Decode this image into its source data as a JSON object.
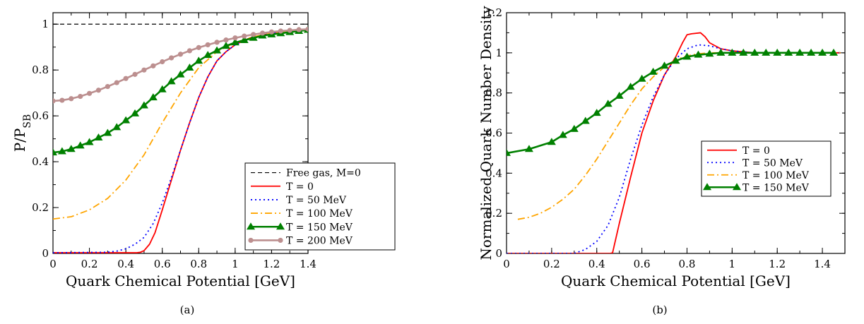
{
  "chart_data": [
    {
      "type": "line",
      "caption": "(a)",
      "xlabel": "Quark Chemical Potential [GeV]",
      "ylabel": "P/P",
      "ylabel_sub": "SB",
      "xlim": [
        0,
        1.4
      ],
      "ylim": [
        0,
        1.05
      ],
      "xticks": [
        "0",
        "0.2",
        "0.4",
        "0.6",
        "0.8",
        "1",
        "1.2",
        "1.4"
      ],
      "xtick_values": [
        0,
        0.2,
        0.4,
        0.6,
        0.8,
        1.0,
        1.2,
        1.4
      ],
      "yticks": [
        "0",
        "0.2",
        "0.4",
        "0.6",
        "0.8",
        "1"
      ],
      "ytick_values": [
        0,
        0.2,
        0.4,
        0.6,
        0.8,
        1.0
      ],
      "legend_position": "lower-right",
      "series": [
        {
          "name": "Free gas, M=0",
          "color": "#000000",
          "style": "dashed",
          "x": [
            0,
            1.4
          ],
          "y": [
            1.0,
            1.0
          ]
        },
        {
          "name": "T = 0",
          "color": "#ff0000",
          "style": "solid",
          "x": [
            0,
            0.46,
            0.48,
            0.5,
            0.53,
            0.56,
            0.6,
            0.65,
            0.7,
            0.75,
            0.8,
            0.85,
            0.9,
            0.95,
            1.0,
            1.05,
            1.1,
            1.2,
            1.3,
            1.4
          ],
          "y": [
            0.003,
            0.003,
            0.005,
            0.012,
            0.04,
            0.09,
            0.19,
            0.32,
            0.45,
            0.57,
            0.68,
            0.77,
            0.84,
            0.88,
            0.91,
            0.93,
            0.945,
            0.96,
            0.97,
            0.975
          ]
        },
        {
          "name": "T = 50 MeV",
          "color": "#0000ff",
          "style": "dotted",
          "x": [
            0,
            0.3,
            0.35,
            0.4,
            0.45,
            0.5,
            0.55,
            0.6,
            0.65,
            0.7,
            0.75,
            0.8,
            0.85,
            0.9,
            0.95,
            1.0,
            1.1,
            1.2,
            1.3,
            1.4
          ],
          "y": [
            0.003,
            0.005,
            0.01,
            0.02,
            0.04,
            0.07,
            0.13,
            0.22,
            0.33,
            0.45,
            0.57,
            0.68,
            0.77,
            0.84,
            0.88,
            0.91,
            0.94,
            0.96,
            0.97,
            0.975
          ]
        },
        {
          "name": "T = 100 MeV",
          "color": "#ffa500",
          "style": "dashdot",
          "x": [
            0,
            0.1,
            0.2,
            0.3,
            0.4,
            0.5,
            0.6,
            0.7,
            0.8,
            0.9,
            1.0,
            1.1,
            1.2,
            1.3,
            1.4
          ],
          "y": [
            0.15,
            0.16,
            0.19,
            0.24,
            0.32,
            0.43,
            0.57,
            0.7,
            0.81,
            0.88,
            0.92,
            0.945,
            0.96,
            0.97,
            0.975
          ]
        },
        {
          "name": "T = 150 MeV",
          "color": "#008000",
          "style": "solid-triangle",
          "x": [
            0,
            0.05,
            0.1,
            0.15,
            0.2,
            0.25,
            0.3,
            0.35,
            0.4,
            0.45,
            0.5,
            0.55,
            0.6,
            0.65,
            0.7,
            0.75,
            0.8,
            0.85,
            0.9,
            0.95,
            1.0,
            1.05,
            1.1,
            1.15,
            1.2,
            1.25,
            1.3,
            1.35,
            1.4
          ],
          "y": [
            0.44,
            0.445,
            0.455,
            0.47,
            0.485,
            0.505,
            0.525,
            0.55,
            0.58,
            0.61,
            0.645,
            0.68,
            0.715,
            0.75,
            0.78,
            0.81,
            0.84,
            0.865,
            0.885,
            0.905,
            0.92,
            0.93,
            0.94,
            0.95,
            0.955,
            0.96,
            0.965,
            0.97,
            0.975
          ]
        },
        {
          "name": "T = 200 MeV",
          "color": "#bc8f8f",
          "style": "solid-circle",
          "x": [
            0,
            0.05,
            0.1,
            0.15,
            0.2,
            0.25,
            0.3,
            0.35,
            0.4,
            0.45,
            0.5,
            0.55,
            0.6,
            0.65,
            0.7,
            0.75,
            0.8,
            0.85,
            0.9,
            0.95,
            1.0,
            1.05,
            1.1,
            1.15,
            1.2,
            1.25,
            1.3,
            1.35,
            1.4
          ],
          "y": [
            0.665,
            0.668,
            0.675,
            0.685,
            0.698,
            0.712,
            0.728,
            0.745,
            0.763,
            0.781,
            0.8,
            0.818,
            0.836,
            0.853,
            0.869,
            0.884,
            0.898,
            0.91,
            0.921,
            0.931,
            0.94,
            0.948,
            0.955,
            0.961,
            0.966,
            0.97,
            0.973,
            0.976,
            0.978
          ]
        }
      ]
    },
    {
      "type": "line",
      "caption": "(b)",
      "xlabel": "Quark Chemical Potential [GeV]",
      "ylabel": "Normalized Quark Number Density",
      "xlim": [
        0,
        1.5
      ],
      "ylim": [
        0,
        1.2
      ],
      "xticks": [
        "0",
        "0.2",
        "0.4",
        "0.6",
        "0.8",
        "1",
        "1.2",
        "1.4"
      ],
      "xtick_values": [
        0,
        0.2,
        0.4,
        0.6,
        0.8,
        1.0,
        1.2,
        1.4
      ],
      "yticks": [
        "0",
        "0.2",
        "0.4",
        "0.6",
        "0.8",
        "1",
        "1.2"
      ],
      "ytick_values": [
        0,
        0.2,
        0.4,
        0.6,
        0.8,
        1.0,
        1.2
      ],
      "legend_position": "center-right",
      "series": [
        {
          "name": "T = 0",
          "color": "#ff0000",
          "style": "solid",
          "x": [
            0,
            0.46,
            0.47,
            0.5,
            0.55,
            0.6,
            0.65,
            0.7,
            0.75,
            0.78,
            0.8,
            0.82,
            0.86,
            0.88,
            0.9,
            0.95,
            1.0,
            1.1,
            1.2,
            1.3,
            1.4,
            1.48
          ],
          "y": [
            0,
            0,
            0.003,
            0.15,
            0.38,
            0.6,
            0.76,
            0.89,
            0.98,
            1.05,
            1.09,
            1.095,
            1.1,
            1.08,
            1.05,
            1.02,
            1.01,
            1.0,
            1.0,
            1.0,
            1.0,
            1.0
          ]
        },
        {
          "name": "T = 50 MeV",
          "color": "#0000ff",
          "style": "dotted",
          "x": [
            0,
            0.3,
            0.35,
            0.4,
            0.45,
            0.5,
            0.55,
            0.6,
            0.65,
            0.7,
            0.75,
            0.8,
            0.85,
            0.9,
            0.95,
            1.0,
            1.05,
            1.1,
            1.2,
            1.3,
            1.4,
            1.48
          ],
          "y": [
            0,
            0,
            0.02,
            0.06,
            0.14,
            0.28,
            0.47,
            0.64,
            0.78,
            0.89,
            0.97,
            1.02,
            1.04,
            1.035,
            1.02,
            1.01,
            1.005,
            1.0,
            1.0,
            1.0,
            1.0,
            1.0
          ]
        },
        {
          "name": "T = 100 MeV",
          "color": "#ffa500",
          "style": "dashdot",
          "x": [
            0.05,
            0.1,
            0.15,
            0.2,
            0.25,
            0.3,
            0.35,
            0.4,
            0.45,
            0.5,
            0.55,
            0.6,
            0.65,
            0.7,
            0.75,
            0.8,
            0.85,
            0.9,
            1.0,
            1.1,
            1.2,
            1.3,
            1.4,
            1.48
          ],
          "y": [
            0.17,
            0.18,
            0.2,
            0.23,
            0.27,
            0.32,
            0.39,
            0.47,
            0.56,
            0.65,
            0.74,
            0.82,
            0.88,
            0.93,
            0.965,
            0.985,
            0.995,
            1.0,
            1.0,
            1.0,
            1.0,
            1.0,
            1.0,
            1.0
          ]
        },
        {
          "name": "T = 150 MeV",
          "color": "#008000",
          "style": "solid-triangle",
          "x": [
            0,
            0.1,
            0.2,
            0.25,
            0.3,
            0.35,
            0.4,
            0.45,
            0.5,
            0.55,
            0.6,
            0.65,
            0.7,
            0.75,
            0.8,
            0.85,
            0.9,
            0.95,
            1.0,
            1.05,
            1.1,
            1.15,
            1.2,
            1.25,
            1.3,
            1.35,
            1.4,
            1.45
          ],
          "y": [
            0.5,
            0.52,
            0.555,
            0.59,
            0.62,
            0.66,
            0.7,
            0.745,
            0.785,
            0.83,
            0.87,
            0.905,
            0.935,
            0.96,
            0.98,
            0.99,
            0.995,
            1.0,
            1.0,
            1.0,
            1.0,
            1.0,
            1.0,
            1.0,
            1.0,
            1.0,
            1.0,
            1.0
          ]
        }
      ]
    }
  ]
}
